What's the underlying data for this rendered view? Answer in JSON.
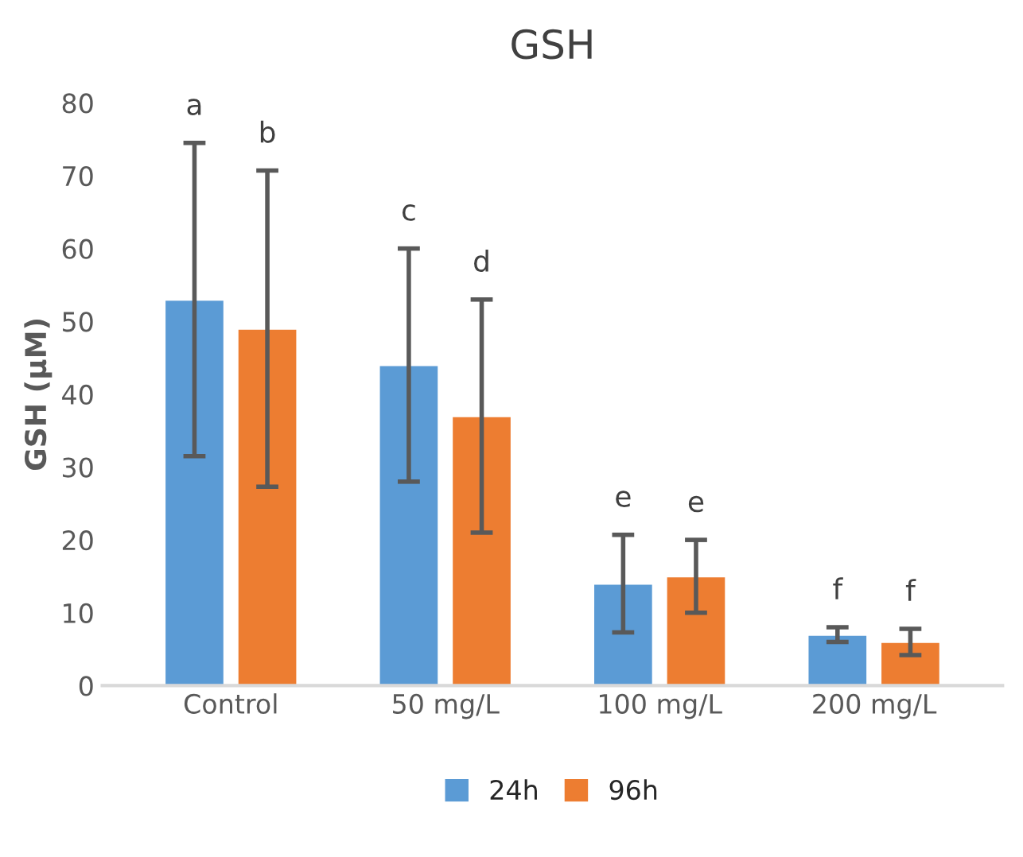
{
  "chart_data": {
    "type": "bar",
    "title": "GSH",
    "ylabel": "GSH (μM)",
    "categories": [
      "Control",
      "50 mg/L",
      "100 mg/L",
      "200 mg/L"
    ],
    "series": [
      {
        "name": "24h",
        "color": "#5b9bd5",
        "values": [
          53,
          44,
          14,
          7
        ],
        "errors": [
          21.5,
          16,
          6.7,
          1
        ]
      },
      {
        "name": "96h",
        "color": "#ed7d31",
        "values": [
          49,
          37,
          15,
          6
        ],
        "errors": [
          21.7,
          16,
          5,
          1.8
        ]
      }
    ],
    "ylim": [
      0,
      80
    ],
    "yticks": [
      0,
      10,
      20,
      30,
      40,
      50,
      60,
      70,
      80
    ],
    "grid": false,
    "legend": "bottom",
    "annotations": [
      "a",
      "b",
      "c",
      "d",
      "e",
      "e",
      "f",
      "f"
    ]
  }
}
